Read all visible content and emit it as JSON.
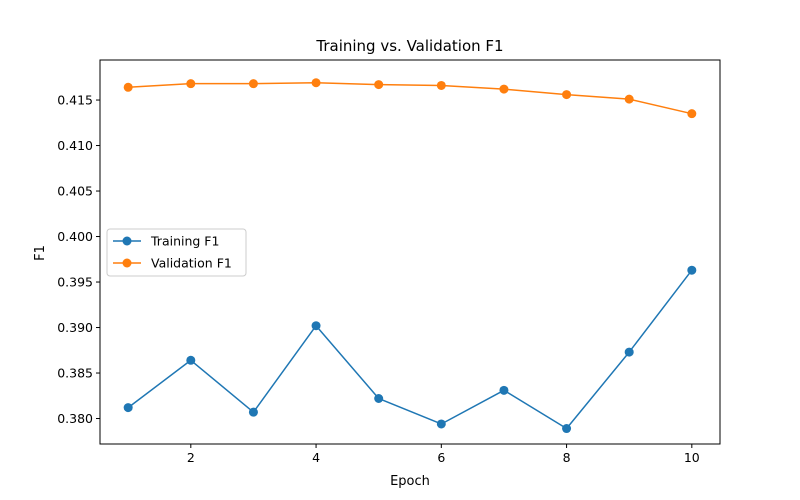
{
  "chart_data": {
    "type": "line",
    "title": "Training vs. Validation F1",
    "xlabel": "Epoch",
    "ylabel": "F1",
    "x": [
      1,
      2,
      3,
      4,
      5,
      6,
      7,
      8,
      9,
      10
    ],
    "xlim": [
      0.55,
      10.45
    ],
    "ylim": [
      0.3772,
      0.4194
    ],
    "xticks": [
      2,
      4,
      6,
      8,
      10
    ],
    "yticks": [
      0.38,
      0.385,
      0.39,
      0.395,
      0.4,
      0.405,
      0.41,
      0.415
    ],
    "xtick_labels": [
      "2",
      "4",
      "6",
      "8",
      "10"
    ],
    "ytick_labels": [
      "0.380",
      "0.385",
      "0.390",
      "0.395",
      "0.400",
      "0.405",
      "0.410",
      "0.415"
    ],
    "grid": false,
    "legend_position": "center-left",
    "series": [
      {
        "name": "Training F1",
        "color": "#1f77b4",
        "marker": "circle",
        "values": [
          0.3812,
          0.3864,
          0.3807,
          0.3902,
          0.3822,
          0.3794,
          0.3831,
          0.3789,
          0.3873,
          0.3963
        ]
      },
      {
        "name": "Validation F1",
        "color": "#ff7f0e",
        "marker": "circle",
        "values": [
          0.4164,
          0.4168,
          0.4168,
          0.4169,
          0.4167,
          0.4166,
          0.4162,
          0.4156,
          0.4151,
          0.4135
        ]
      }
    ]
  }
}
